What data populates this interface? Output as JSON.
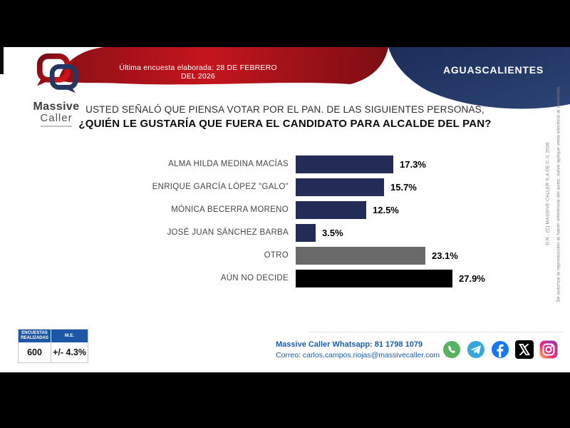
{
  "header": {
    "date_banner": "Última encuesta elaborada: 28 DE FEBRERO DEL 2026",
    "region": "AGUASCALIENTES",
    "logo": {
      "word1": "Massive",
      "word2": "Caller"
    }
  },
  "question": {
    "line1": "USTED SEÑALÓ QUE PIENSA VOTAR POR EL PAN. DE LAS SIGUIENTES PERSONAS,",
    "line2": "¿QUIÉN LE GUSTARÍA QUE FUERA EL CANDIDATO PARA ALCALDE DEL PAN?"
  },
  "chart_data": {
    "type": "bar",
    "orientation": "horizontal",
    "categories": [
      "ALMA HILDA MEDINA MACÍAS",
      "ENRIQUE GARCÍA LÓPEZ \"GALO\"",
      "MÓNICA BECERRA MORENO",
      "JOSÉ JUAN SÁNCHEZ BARBA",
      "OTRO",
      "AÚN NO DECIDE"
    ],
    "values": [
      17.3,
      15.7,
      12.5,
      3.5,
      23.1,
      27.9
    ],
    "value_labels": [
      "17.3%",
      "15.7%",
      "12.5%",
      "3.5%",
      "23.1%",
      "27.9%"
    ],
    "colors": [
      "#222c57",
      "#222c57",
      "#222c57",
      "#222c57",
      "#696969",
      "#000000"
    ],
    "xlim": [
      0,
      30
    ],
    "grid": false,
    "legend": "none",
    "title": "¿Quién le gustaría que fuera el candidato para alcalde del PAN?"
  },
  "stats_table": {
    "headers": [
      "ENCUESTAS REALIZADAS",
      "M.E."
    ],
    "header1_line1": "ENCUESTAS",
    "header1_line2": "REALIZADAS",
    "header2": "M.E.",
    "values": [
      "600",
      "+/- 4.3%"
    ],
    "surveys": "600",
    "margin_of_error": "+/- 4.3%",
    "header_color": "#1d56a4"
  },
  "footer": {
    "whatsapp_line": "Massive Caller Whatsapp: 81 1798 1079",
    "email_line": "Correo: carlos.campos.riojas@massivecaller.com",
    "social": [
      "whatsapp-icon",
      "telegram-icon",
      "facebook-icon",
      "x-icon",
      "instagram-icon"
    ],
    "text_color": "#1d5dab"
  },
  "side_note": {
    "line1": "D.R., (C) MASSIVE CALLER S.A DE C.V, 2026",
    "line2": "Se autoriza la reproducción al hacer referencia del autor, salvo aplique veda electoral al contenido."
  },
  "theme": {
    "banner_red": "#b3121a",
    "banner_navy": "#24396b",
    "bar_navy": "#222c57",
    "bar_gray": "#696969",
    "bar_black": "#000000"
  }
}
